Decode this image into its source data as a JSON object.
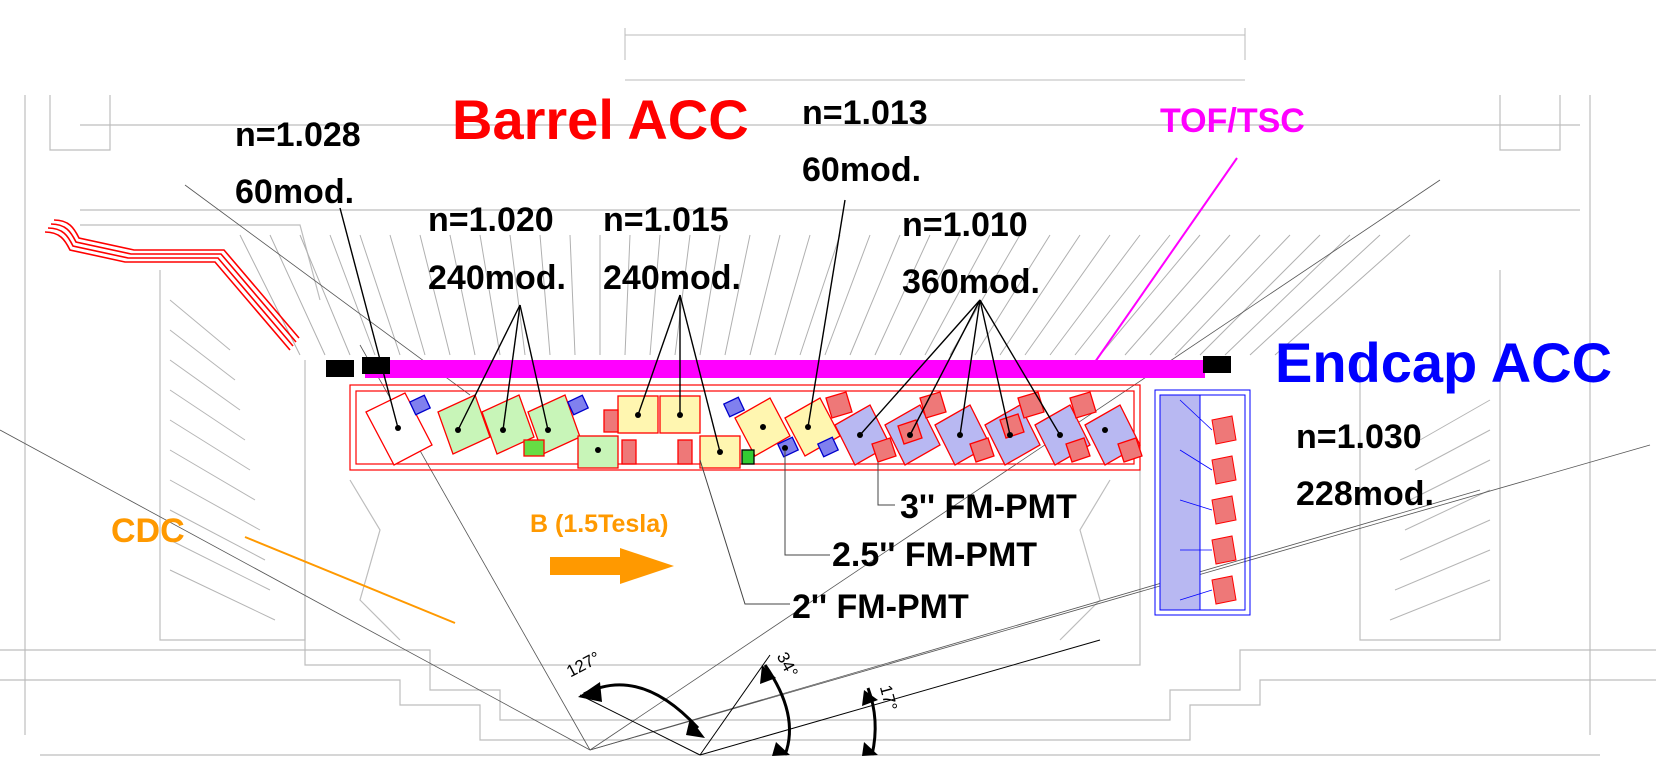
{
  "colors": {
    "barrel": "#ff0000",
    "endcap": "#0000ff",
    "tof": "#ff00ff",
    "cdc": "#ff9900",
    "mod_green": "#c8f5b8",
    "mod_yellow": "#fff6b0",
    "mod_blue": "#b8b8f2",
    "mod_red": "#ee7878",
    "frame": "#cccccc"
  },
  "labels": {
    "barrel_title": "Barrel ACC",
    "endcap_title": "Endcap ACC",
    "tof_tsc": "TOF/TSC",
    "cdc": "CDC",
    "bfield": "B (1.5Tesla)"
  },
  "groups": [
    {
      "n": "n=1.028",
      "mods": "60mod."
    },
    {
      "n": "n=1.020",
      "mods": "240mod."
    },
    {
      "n": "n=1.015",
      "mods": "240mod."
    },
    {
      "n": "n=1.013",
      "mods": "60mod."
    },
    {
      "n": "n=1.010",
      "mods": "360mod."
    },
    {
      "n": "n=1.030",
      "mods": "228mod."
    }
  ],
  "pmts": [
    "3'' FM-PMT",
    "2.5'' FM-PMT",
    "2'' FM-PMT"
  ],
  "angles": [
    "127°",
    "34°",
    "17°"
  ]
}
